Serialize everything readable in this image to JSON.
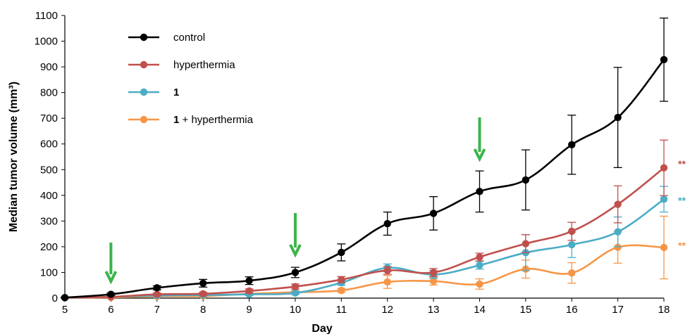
{
  "chart_data": {
    "type": "line",
    "title": "",
    "xlabel": "Day",
    "ylabel": "Median tumor volume (mm³)",
    "x": [
      5,
      6,
      7,
      8,
      9,
      10,
      11,
      12,
      13,
      14,
      15,
      16,
      17,
      18
    ],
    "xlim": [
      5,
      18
    ],
    "ylim": [
      0,
      1100
    ],
    "yticks": [
      0,
      100,
      200,
      300,
      400,
      500,
      600,
      700,
      800,
      900,
      1000,
      1100
    ],
    "grid": false,
    "legend_position": "top-left",
    "series": [
      {
        "name": "control",
        "name_bold_prefix": "",
        "name_rest": "control",
        "color": "#000000",
        "values": [
          2,
          15,
          40,
          58,
          68,
          100,
          178,
          290,
          330,
          415,
          460,
          597,
          703,
          928
        ],
        "errors": [
          2,
          5,
          8,
          15,
          15,
          20,
          33,
          45,
          65,
          80,
          117,
          115,
          195,
          162
        ],
        "significance": ""
      },
      {
        "name": "hyperthermia",
        "name_bold_prefix": "",
        "name_rest": "hyperthermia",
        "color": "#c0504d",
        "values": [
          2,
          5,
          15,
          17,
          28,
          45,
          72,
          108,
          100,
          160,
          212,
          260,
          365,
          507
        ],
        "errors": [
          1,
          3,
          5,
          6,
          8,
          10,
          12,
          15,
          15,
          15,
          35,
          35,
          72,
          108
        ],
        "significance": "**"
      },
      {
        "name": "1",
        "name_bold_prefix": "1",
        "name_rest": "",
        "color": "#4bacc6",
        "values": [
          2,
          5,
          10,
          12,
          15,
          20,
          60,
          118,
          92,
          128,
          177,
          208,
          258,
          385
        ],
        "errors": [
          1,
          2,
          3,
          4,
          5,
          6,
          10,
          15,
          15,
          15,
          70,
          50,
          58,
          50
        ],
        "significance": "**"
      },
      {
        "name": "1 + hyperthermia",
        "name_bold_prefix": "1",
        "name_rest": " + hyperthermia",
        "color": "#f79646",
        "values": [
          2,
          3,
          7,
          8,
          17,
          23,
          30,
          63,
          66,
          55,
          113,
          98,
          198,
          197
        ],
        "errors": [
          1,
          2,
          2,
          3,
          4,
          5,
          8,
          25,
          15,
          20,
          35,
          40,
          62,
          122
        ],
        "significance": "**"
      }
    ],
    "annotations": {
      "arrow_days": [
        6,
        10,
        14
      ],
      "arrow_color": "#3cb44b"
    }
  }
}
